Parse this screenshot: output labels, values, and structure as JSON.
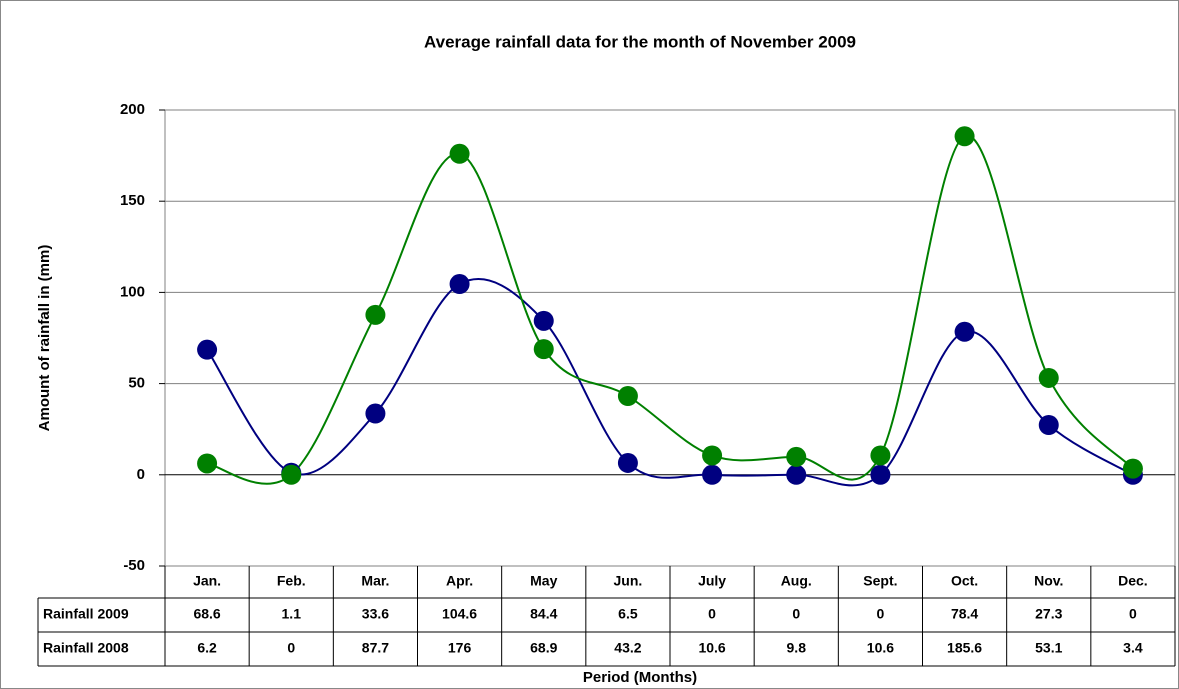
{
  "chart_data": {
    "type": "line",
    "smooth": true,
    "title": "Average rainfall data for the month of November 2009",
    "x_label": "Period (Months)",
    "y_label": "Amount of rainfall in (mm)",
    "categories": [
      "Jan.",
      "Feb.",
      "Mar.",
      "Apr.",
      "May",
      "Jun.",
      "July",
      "Aug.",
      "Sept.",
      "Oct.",
      "Nov.",
      "Dec."
    ],
    "series": [
      {
        "name": "Rainfall 2009",
        "color": "#000080",
        "values": [
          68.6,
          1.1,
          33.6,
          104.6,
          84.4,
          6.5,
          0,
          0,
          0,
          78.4,
          27.3,
          0
        ]
      },
      {
        "name": "Rainfall 2008",
        "color": "#008000",
        "values": [
          6.2,
          0,
          87.7,
          176,
          68.9,
          43.2,
          10.6,
          9.8,
          10.6,
          185.6,
          53.1,
          3.4
        ]
      }
    ],
    "ylim": [
      -50,
      200
    ],
    "yticks": [
      -50,
      0,
      50,
      100,
      150,
      200
    ],
    "grid": true,
    "data_table": true
  }
}
